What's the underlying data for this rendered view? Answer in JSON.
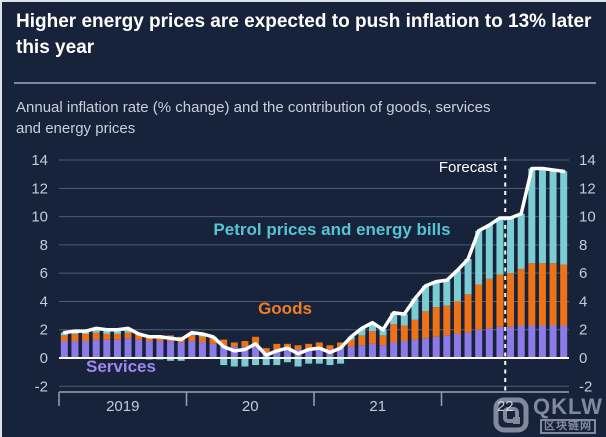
{
  "header": {
    "title": "Higher energy prices are expected to push inflation to 13% later this year",
    "subtitle": "Annual inflation rate (% change) and the contribution of goods, services and energy prices"
  },
  "chart_data": {
    "type": "bar",
    "subtype": "stacked-monthly-bars-with-total-line",
    "title": "Higher energy prices are expected to push inflation to 13% later this year",
    "xlabel": "",
    "ylabel": "Annual inflation rate (% change)",
    "ylim": [
      -2,
      14
    ],
    "y_ticks": [
      14,
      12,
      10,
      8,
      6,
      4,
      2,
      0,
      -2
    ],
    "grid": true,
    "year_ticks": [
      "2019",
      "20",
      "21",
      "22"
    ],
    "months": [
      "2019-01",
      "2019-02",
      "2019-03",
      "2019-04",
      "2019-05",
      "2019-06",
      "2019-07",
      "2019-08",
      "2019-09",
      "2019-10",
      "2019-11",
      "2019-12",
      "2020-01",
      "2020-02",
      "2020-03",
      "2020-04",
      "2020-05",
      "2020-06",
      "2020-07",
      "2020-08",
      "2020-09",
      "2020-10",
      "2020-11",
      "2020-12",
      "2021-01",
      "2021-02",
      "2021-03",
      "2021-04",
      "2021-05",
      "2021-06",
      "2021-07",
      "2021-08",
      "2021-09",
      "2021-10",
      "2021-11",
      "2021-12",
      "2022-01",
      "2022-02",
      "2022-03",
      "2022-04",
      "2022-05",
      "2022-06",
      "2022-07",
      "2022-08",
      "2022-09",
      "2022-10",
      "2022-11",
      "2022-12"
    ],
    "series": [
      {
        "name": "Services",
        "color": "#8C7AE6",
        "label_color": "#9D87F2",
        "values": [
          1.2,
          1.2,
          1.2,
          1.3,
          1.3,
          1.3,
          1.4,
          1.3,
          1.2,
          1.2,
          1.2,
          1.1,
          1.2,
          1.1,
          1.0,
          0.9,
          0.8,
          0.8,
          0.9,
          0.4,
          0.6,
          0.6,
          0.6,
          0.6,
          0.7,
          0.6,
          0.7,
          0.8,
          0.9,
          1.0,
          0.9,
          1.1,
          1.2,
          1.3,
          1.4,
          1.5,
          1.6,
          1.7,
          1.8,
          2.0,
          2.1,
          2.2,
          2.2,
          2.3,
          2.3,
          2.3,
          2.3,
          2.3
        ]
      },
      {
        "name": "Goods",
        "color": "#ED7218",
        "label_color": "#F07E22",
        "values": [
          0.4,
          0.5,
          0.5,
          0.5,
          0.4,
          0.4,
          0.4,
          0.4,
          0.4,
          0.4,
          0.4,
          0.4,
          0.4,
          0.4,
          0.4,
          0.4,
          0.3,
          0.4,
          0.6,
          0.3,
          0.4,
          0.4,
          0.3,
          0.4,
          0.4,
          0.3,
          0.4,
          0.5,
          0.7,
          0.9,
          0.7,
          1.3,
          1.1,
          1.4,
          1.9,
          2.1,
          2.1,
          2.3,
          2.7,
          3.2,
          3.5,
          3.7,
          3.8,
          4.0,
          4.4,
          4.4,
          4.4,
          4.3
        ]
      },
      {
        "name": "Petrol prices and energy bills",
        "color": "#7BCDD3",
        "label_color": "#56C4D2",
        "values": [
          0.2,
          0.2,
          0.2,
          0.3,
          0.3,
          0.3,
          0.3,
          0.0,
          -0.1,
          -0.1,
          -0.2,
          -0.2,
          0.2,
          0.2,
          0.1,
          -0.5,
          -0.6,
          -0.6,
          -0.5,
          -0.5,
          -0.5,
          -0.3,
          -0.6,
          -0.4,
          -0.4,
          -0.5,
          -0.4,
          0.2,
          0.5,
          0.6,
          0.4,
          0.8,
          0.8,
          1.5,
          1.8,
          1.8,
          1.8,
          2.2,
          2.5,
          3.8,
          3.8,
          4.0,
          3.9,
          3.9,
          6.7,
          6.7,
          6.6,
          6.6
        ]
      }
    ],
    "line": {
      "name": "Annual inflation rate (total)",
      "color": "#FFFFFF",
      "values": [
        1.8,
        1.9,
        1.9,
        2.1,
        2.0,
        2.0,
        2.1,
        1.7,
        1.5,
        1.5,
        1.4,
        1.3,
        1.8,
        1.7,
        1.5,
        0.8,
        0.5,
        0.6,
        1.0,
        0.2,
        0.5,
        0.7,
        0.3,
        0.6,
        0.7,
        0.4,
        0.7,
        1.5,
        2.1,
        2.5,
        2.0,
        3.2,
        3.1,
        4.2,
        5.1,
        5.4,
        5.5,
        6.2,
        7.0,
        9.0,
        9.4,
        9.9,
        9.9,
        10.2,
        13.4,
        13.4,
        13.3,
        13.2
      ]
    },
    "forecast_label": "Forecast",
    "forecast_boundary_index": 42,
    "legend_position": "inline-annotations",
    "colors": {
      "background": "#17233A",
      "gridline": "#4E5C74",
      "axis_text": "#C3CBD7",
      "zero_line": "#FFFFFF",
      "total_line": "#FFFFFF",
      "forecast_line": "#FFFFFF"
    }
  },
  "watermark": {
    "brand": "QKLW",
    "subtext": "区块链网"
  }
}
